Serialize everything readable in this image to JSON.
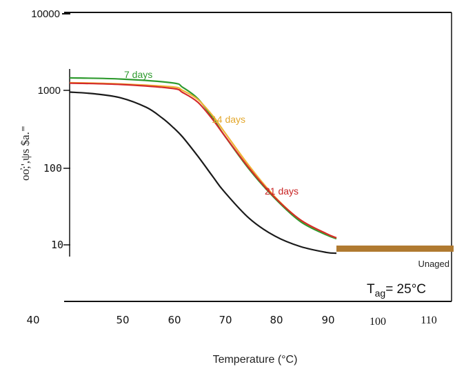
{
  "chart_data": {
    "type": "line",
    "title": "",
    "xlabel": "Temperature  (°C)",
    "ylabel": "oo̓;',ψs $a.⁼",
    "x_ticks": [
      "40",
      "50",
      "60",
      "70",
      "80",
      "90",
      "100",
      "110"
    ],
    "y_ticks": [
      "10000",
      "1000",
      "100",
      "10"
    ],
    "xlim": [
      40,
      115
    ],
    "ylim": [
      1,
      10000
    ],
    "y_scale": "log",
    "annotation_tag": "T",
    "annotation_tag_sub": "ag",
    "annotation_tag_rest": "= 25°C",
    "unaged_label": "Unaged",
    "series": [
      {
        "name": "",
        "color": "#1a1a1a",
        "x": [
          40,
          45,
          50,
          55,
          58,
          60,
          62,
          65,
          68,
          70,
          75,
          80,
          85,
          90,
          92
        ],
        "y": [
          950,
          900,
          800,
          600,
          440,
          340,
          250,
          140,
          75,
          50,
          22,
          13,
          9.5,
          8,
          7.8
        ]
      },
      {
        "name": "7 days",
        "color": "#2e9a2e",
        "x": [
          40,
          50,
          60,
          62,
          65,
          68,
          70,
          75,
          80,
          85,
          90,
          92
        ],
        "y": [
          1450,
          1400,
          1250,
          1100,
          780,
          430,
          270,
          95,
          40,
          20,
          13.5,
          12
        ]
      },
      {
        "name": "14 days",
        "color": "#f0b336",
        "x": [
          40,
          50,
          60,
          62,
          65,
          68,
          70,
          75,
          80,
          85,
          90,
          92
        ],
        "y": [
          1260,
          1210,
          1110,
          1000,
          760,
          460,
          300,
          105,
          42,
          21,
          14,
          12.3
        ]
      },
      {
        "name": "21 days",
        "color": "#d42a2a",
        "x": [
          40,
          50,
          60,
          62,
          65,
          68,
          70,
          75,
          80,
          85,
          90,
          92
        ],
        "y": [
          1240,
          1190,
          1060,
          940,
          700,
          410,
          270,
          98,
          41,
          21,
          14,
          12.3
        ]
      }
    ],
    "unaged_band": {
      "x": [
        92,
        115
      ],
      "y": 9,
      "color": "#b07a30"
    }
  }
}
